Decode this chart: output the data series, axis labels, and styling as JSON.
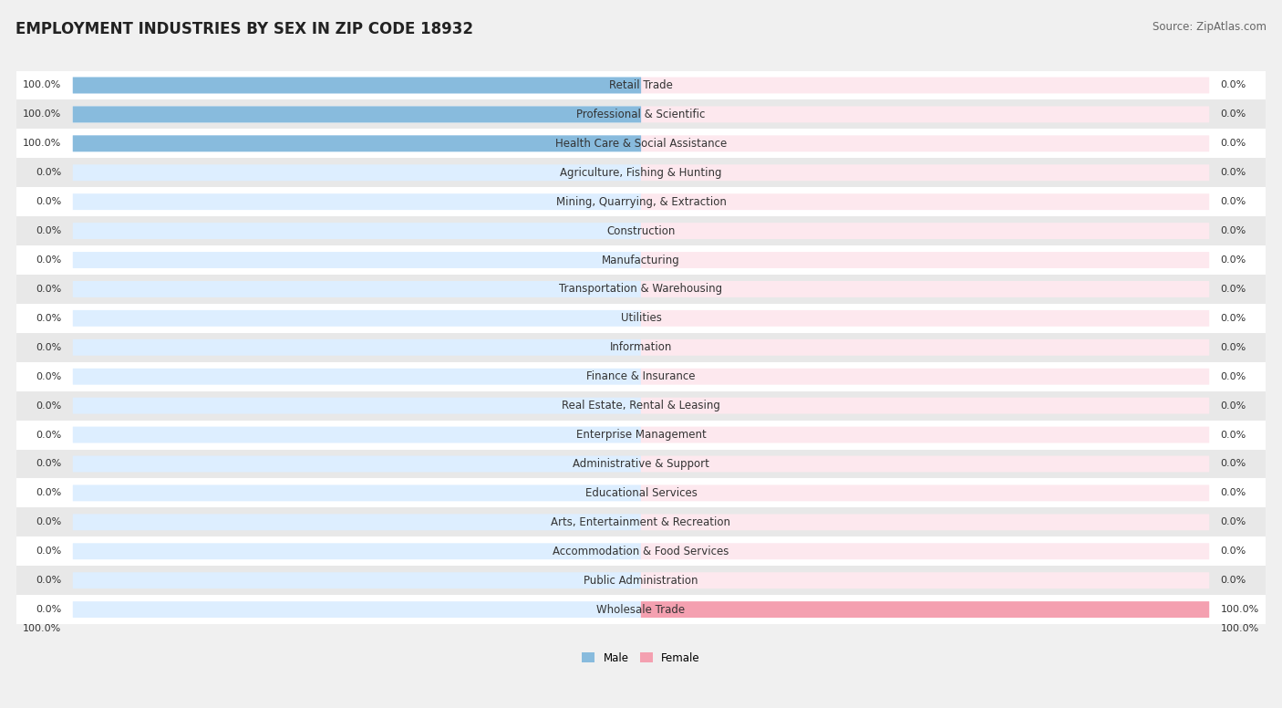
{
  "title": "EMPLOYMENT INDUSTRIES BY SEX IN ZIP CODE 18932",
  "source": "Source: ZipAtlas.com",
  "categories": [
    "Retail Trade",
    "Professional & Scientific",
    "Health Care & Social Assistance",
    "Agriculture, Fishing & Hunting",
    "Mining, Quarrying, & Extraction",
    "Construction",
    "Manufacturing",
    "Transportation & Warehousing",
    "Utilities",
    "Information",
    "Finance & Insurance",
    "Real Estate, Rental & Leasing",
    "Enterprise Management",
    "Administrative & Support",
    "Educational Services",
    "Arts, Entertainment & Recreation",
    "Accommodation & Food Services",
    "Public Administration",
    "Wholesale Trade"
  ],
  "male": [
    100.0,
    100.0,
    100.0,
    0.0,
    0.0,
    0.0,
    0.0,
    0.0,
    0.0,
    0.0,
    0.0,
    0.0,
    0.0,
    0.0,
    0.0,
    0.0,
    0.0,
    0.0,
    0.0
  ],
  "female": [
    0.0,
    0.0,
    0.0,
    0.0,
    0.0,
    0.0,
    0.0,
    0.0,
    0.0,
    0.0,
    0.0,
    0.0,
    0.0,
    0.0,
    0.0,
    0.0,
    0.0,
    0.0,
    100.0
  ],
  "male_color": "#88bbdd",
  "female_color": "#f4a0b0",
  "bar_bg_male": "#ddeeff",
  "bar_bg_female": "#fde8ee",
  "title_fontsize": 12,
  "source_fontsize": 8.5,
  "label_fontsize": 8.5,
  "bar_label_fontsize": 8,
  "background_color": "#f0f0f0",
  "row_bg_even": "#ffffff",
  "row_bg_odd": "#e8e8e8"
}
